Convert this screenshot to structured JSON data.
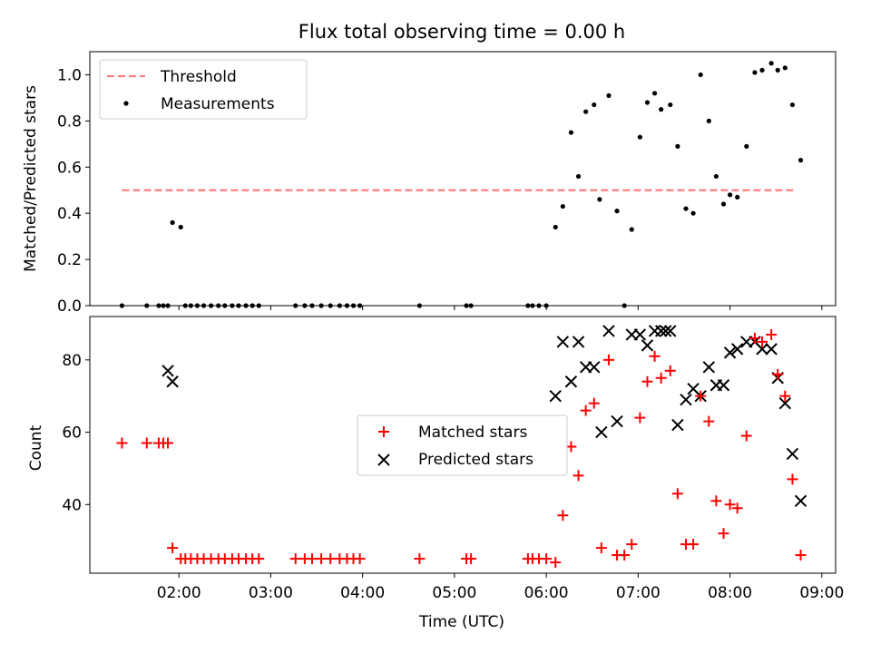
{
  "title": "Flux total observing time = 0.00 h",
  "chart_data": [
    {
      "type": "scatter",
      "ylabel": "Matched/Predicted stars",
      "ylim": [
        0,
        1.1
      ],
      "yticks": [
        "0.0",
        "0.2",
        "0.4",
        "0.6",
        "0.8",
        "1.0"
      ],
      "xlim": [
        1.03,
        9.15
      ],
      "grid": false,
      "legend": {
        "placement": "upper-left",
        "threshold_label": "Threshold",
        "measurements_label": "Measurements"
      },
      "threshold": {
        "value": 0.5,
        "x": [
          1.38,
          8.73
        ],
        "color": "#ff7f7f"
      },
      "measurements": {
        "color": "#000000",
        "x": [
          1.38,
          1.65,
          1.78,
          1.83,
          1.88,
          1.93,
          2.02,
          2.07,
          2.13,
          2.2,
          2.27,
          2.35,
          2.43,
          2.5,
          2.58,
          2.65,
          2.73,
          2.8,
          2.87,
          3.27,
          3.37,
          3.45,
          3.55,
          3.65,
          3.75,
          3.83,
          3.9,
          3.97,
          4.62,
          5.13,
          5.18,
          5.8,
          5.85,
          5.92,
          6.0,
          6.1,
          6.18,
          6.27,
          6.35,
          6.43,
          6.52,
          6.58,
          6.68,
          6.77,
          6.85,
          6.93,
          7.02,
          7.1,
          7.18,
          7.25,
          7.35,
          7.43,
          7.52,
          7.6,
          7.68,
          7.77,
          7.85,
          7.93,
          8.0,
          8.08,
          8.18,
          8.27,
          8.35,
          8.45,
          8.52,
          8.6,
          8.68,
          8.77
        ],
        "y": [
          0,
          0,
          0,
          0,
          0,
          0.36,
          0.34,
          0,
          0,
          0,
          0,
          0,
          0,
          0,
          0,
          0,
          0,
          0,
          0,
          0,
          0,
          0,
          0,
          0,
          0,
          0,
          0,
          0,
          0,
          0,
          0,
          0,
          0,
          0,
          0,
          0.34,
          0.43,
          0.75,
          0.56,
          0.84,
          0.87,
          0.46,
          0.91,
          0.41,
          0,
          0.33,
          0.73,
          0.88,
          0.92,
          0.85,
          0.87,
          0.69,
          0.42,
          0.4,
          1.0,
          0.8,
          0.56,
          0.44,
          0.48,
          0.47,
          0.69,
          1.01,
          1.02,
          1.05,
          1.02,
          1.03,
          0.87,
          0.63
        ]
      }
    },
    {
      "type": "scatter",
      "xlabel": "Time (UTC)",
      "ylabel": "Count",
      "ylim": [
        21,
        92
      ],
      "yticks": [
        "40",
        "60",
        "80"
      ],
      "xticks": [
        "02:00",
        "03:00",
        "04:00",
        "05:00",
        "06:00",
        "07:00",
        "08:00",
        "09:00"
      ],
      "xlim": [
        1.03,
        9.15
      ],
      "grid": false,
      "legend": {
        "placement": "center",
        "matched_label": "Matched stars",
        "predicted_label": "Predicted stars"
      },
      "matched": {
        "color": "#ff0000",
        "x": [
          1.38,
          1.65,
          1.78,
          1.83,
          1.88,
          1.93,
          2.02,
          2.07,
          2.13,
          2.2,
          2.27,
          2.35,
          2.43,
          2.5,
          2.58,
          2.65,
          2.73,
          2.8,
          2.87,
          3.27,
          3.37,
          3.45,
          3.55,
          3.65,
          3.75,
          3.83,
          3.9,
          3.97,
          4.62,
          5.13,
          5.18,
          5.8,
          5.85,
          5.92,
          6.0,
          6.1,
          6.18,
          6.27,
          6.35,
          6.43,
          6.52,
          6.6,
          6.68,
          6.77,
          6.85,
          6.93,
          7.02,
          7.1,
          7.18,
          7.25,
          7.35,
          7.43,
          7.52,
          7.6,
          7.68,
          7.77,
          7.85,
          7.93,
          8.0,
          8.08,
          8.18,
          8.27,
          8.35,
          8.45,
          8.52,
          8.6,
          8.68,
          8.77
        ],
        "y": [
          57,
          57,
          57,
          57,
          57,
          28,
          25,
          25,
          25,
          25,
          25,
          25,
          25,
          25,
          25,
          25,
          25,
          25,
          25,
          25,
          25,
          25,
          25,
          25,
          25,
          25,
          25,
          25,
          25,
          25,
          25,
          25,
          25,
          25,
          25,
          24,
          37,
          56,
          48,
          66,
          68,
          28,
          80,
          26,
          26,
          29,
          64,
          74,
          81,
          75,
          77,
          43,
          29,
          29,
          70,
          63,
          41,
          32,
          40,
          39,
          59,
          86,
          85,
          87,
          76,
          70,
          47,
          26
        ]
      },
      "predicted": {
        "color": "#000000",
        "x": [
          1.88,
          1.93,
          6.1,
          6.18,
          6.27,
          6.35,
          6.43,
          6.52,
          6.6,
          6.68,
          6.77,
          6.93,
          7.02,
          7.1,
          7.18,
          7.25,
          7.3,
          7.35,
          7.43,
          7.52,
          7.6,
          7.68,
          7.77,
          7.85,
          7.93,
          8.0,
          8.08,
          8.18,
          8.27,
          8.35,
          8.45,
          8.52,
          8.6,
          8.68,
          8.77
        ],
        "y": [
          77,
          74,
          70,
          85,
          74,
          85,
          78,
          78,
          60,
          88,
          63,
          87,
          87,
          84,
          88,
          88,
          88,
          88,
          62,
          69,
          72,
          70,
          78,
          73,
          73,
          82,
          83,
          85,
          85,
          83,
          83,
          75,
          68,
          54,
          41
        ]
      }
    }
  ]
}
